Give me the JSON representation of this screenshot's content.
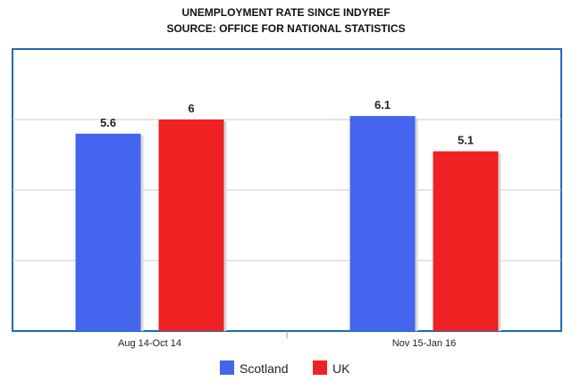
{
  "chart_data": {
    "type": "bar",
    "title": "UNEMPLOYMENT RATE SINCE INDYREF",
    "subtitle": "SOURCE: OFFICE FOR NATIONAL STATISTICS",
    "categories": [
      "Aug 14-Oct 14",
      "Nov 15-Jan 16"
    ],
    "series": [
      {
        "name": "Scotland",
        "values": [
          5.6,
          6.1
        ],
        "color": "#4466ee"
      },
      {
        "name": "UK",
        "values": [
          6,
          5.1
        ],
        "color": "#ee2222"
      }
    ],
    "data_labels": [
      [
        "5.6",
        "6"
      ],
      [
        "6.1",
        "5.1"
      ]
    ],
    "ylim": [
      0,
      8
    ],
    "grid": true,
    "legend_position": "bottom",
    "frame_color": "#1a6bb0"
  }
}
